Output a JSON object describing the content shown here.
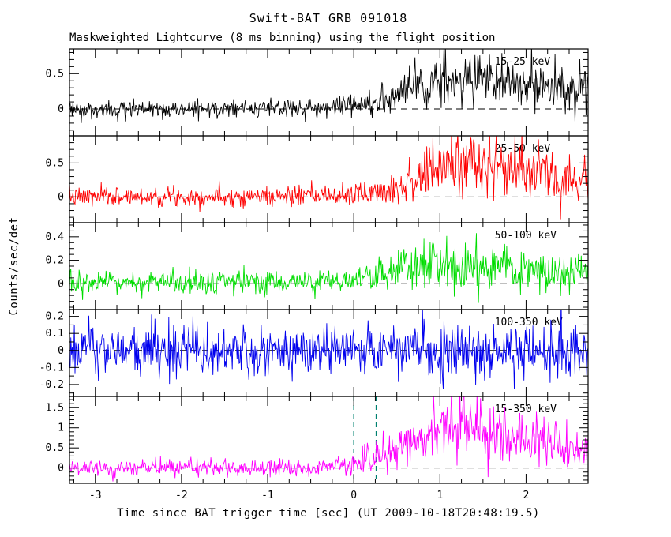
{
  "figure": {
    "title": "Swift-BAT GRB 091018",
    "subtitle": "Maskweighted Lightcurve (8 ms binning) using the flight position",
    "ylabel": "Counts/sec/det",
    "xlabel": "Time since BAT trigger time [sec] (UT 2009-10-18T20:48:19.5)"
  },
  "chart_data": {
    "type": "line",
    "title": "Swift-BAT GRB 091018",
    "subtitle": "Maskweighted Lightcurve (8 ms binning) using the flight position",
    "xlabel": "Time since BAT trigger time [sec] (UT 2009-10-18T20:48:19.5)",
    "ylabel": "Counts/sec/det",
    "background": "#ffffff",
    "axis_color": "#000000",
    "grid": false,
    "legend": "inline-per-panel",
    "x_range": [
      -3.3,
      2.72
    ],
    "x_ticks": [
      -3,
      -2,
      -1,
      0,
      1,
      2
    ],
    "x_minor_step": 0.25,
    "bin_sec": 0.008,
    "zero_line": {
      "style": "dashed",
      "color": "#000000",
      "y": 0
    },
    "panels": [
      {
        "band": "15-25 keV",
        "color": "#000000",
        "y_range": [
          -0.38,
          0.85
        ],
        "y_ticks": [
          0,
          0.5
        ],
        "y_minor_step": 0.1,
        "noise_sigma": 0.065,
        "signal_noise": 0.35,
        "seed": 3,
        "mean_profile": [
          [
            -3.3,
            0
          ],
          [
            -0.5,
            0.01
          ],
          [
            0,
            0.05
          ],
          [
            0.4,
            0.15
          ],
          [
            0.8,
            0.32
          ],
          [
            1.1,
            0.42
          ],
          [
            1.5,
            0.43
          ],
          [
            1.9,
            0.38
          ],
          [
            2.3,
            0.32
          ],
          [
            2.72,
            0.25
          ]
        ]
      },
      {
        "band": "25-50 keV",
        "color": "#ff0000",
        "y_range": [
          -0.38,
          0.9
        ],
        "y_ticks": [
          0,
          0.5
        ],
        "y_minor_step": 0.1,
        "noise_sigma": 0.07,
        "signal_noise": 0.35,
        "seed": 7,
        "mean_profile": [
          [
            -3.3,
            0
          ],
          [
            -0.2,
            0.01
          ],
          [
            0.2,
            0.06
          ],
          [
            0.5,
            0.15
          ],
          [
            0.8,
            0.3
          ],
          [
            1.1,
            0.48
          ],
          [
            1.3,
            0.52
          ],
          [
            1.6,
            0.45
          ],
          [
            2.0,
            0.38
          ],
          [
            2.4,
            0.3
          ],
          [
            2.72,
            0.25
          ]
        ]
      },
      {
        "band": "50-100 keV",
        "color": "#00dd00",
        "y_range": [
          -0.22,
          0.52
        ],
        "y_ticks": [
          0,
          0.2,
          0.4
        ],
        "y_minor_step": 0.05,
        "noise_sigma": 0.05,
        "signal_noise": 0.35,
        "seed": 13,
        "mean_profile": [
          [
            -3.3,
            0
          ],
          [
            0,
            0.02
          ],
          [
            0.4,
            0.08
          ],
          [
            0.8,
            0.15
          ],
          [
            1.1,
            0.18
          ],
          [
            1.5,
            0.14
          ],
          [
            2.0,
            0.1
          ],
          [
            2.72,
            0.08
          ]
        ]
      },
      {
        "band": "100-350 keV",
        "color": "#0000ee",
        "y_range": [
          -0.27,
          0.24
        ],
        "y_ticks": [
          -0.2,
          -0.1,
          0,
          0.1,
          0.2
        ],
        "y_minor_step": 0.05,
        "noise_sigma": 0.08,
        "signal_noise": 0.0,
        "seed": 21,
        "mean_profile": [
          [
            -3.3,
            0
          ],
          [
            2.72,
            0
          ]
        ]
      },
      {
        "band": "15-350 keV",
        "color": "#ff00ff",
        "y_range": [
          -0.38,
          1.78
        ],
        "y_ticks": [
          0,
          0.5,
          1,
          1.5
        ],
        "y_minor_step": 0.1,
        "noise_sigma": 0.1,
        "signal_noise": 0.3,
        "seed": 29,
        "mean_profile": [
          [
            -3.3,
            0
          ],
          [
            -0.5,
            0.02
          ],
          [
            0,
            0.1
          ],
          [
            0.3,
            0.3
          ],
          [
            0.6,
            0.55
          ],
          [
            0.9,
            0.85
          ],
          [
            1.15,
            1.1
          ],
          [
            1.35,
            1.05
          ],
          [
            1.7,
            0.9
          ],
          [
            2.1,
            0.7
          ],
          [
            2.4,
            0.55
          ],
          [
            2.72,
            0.45
          ]
        ],
        "vlines": {
          "color": "#008070",
          "style": "dashed",
          "x": [
            0,
            0.26
          ]
        }
      }
    ]
  }
}
